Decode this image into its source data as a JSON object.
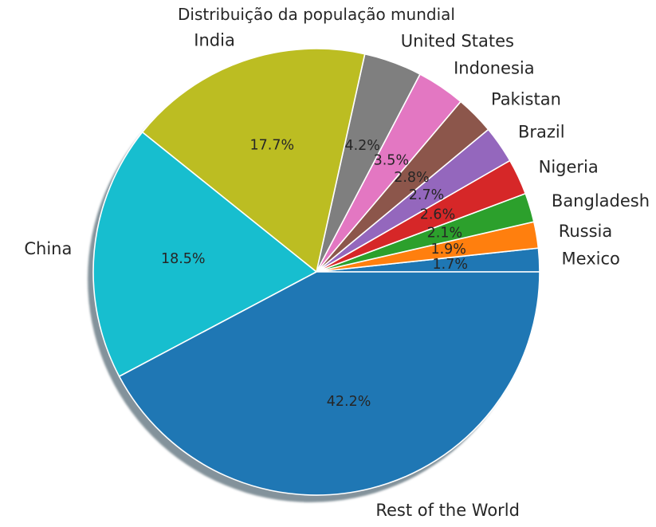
{
  "chart_data": {
    "type": "pie",
    "title": "Distribuição da população mundial",
    "start_angle_deg": 0,
    "direction": "counterclockwise",
    "shadow": true,
    "slices": [
      {
        "label": "Mexico",
        "value": 1.7,
        "pct_label": "1.7%",
        "color": "#1f77b4"
      },
      {
        "label": "Russia",
        "value": 1.9,
        "pct_label": "1.9%",
        "color": "#ff7f0e"
      },
      {
        "label": "Bangladesh",
        "value": 2.1,
        "pct_label": "2.1%",
        "color": "#2ca02c"
      },
      {
        "label": "Nigeria",
        "value": 2.6,
        "pct_label": "2.6%",
        "color": "#d62728"
      },
      {
        "label": "Brazil",
        "value": 2.7,
        "pct_label": "2.7%",
        "color": "#9467bd"
      },
      {
        "label": "Pakistan",
        "value": 2.8,
        "pct_label": "2.8%",
        "color": "#8c564b"
      },
      {
        "label": "Indonesia",
        "value": 3.5,
        "pct_label": "3.5%",
        "color": "#e377c2"
      },
      {
        "label": "United States",
        "value": 4.2,
        "pct_label": "4.2%",
        "color": "#7f7f7f"
      },
      {
        "label": "India",
        "value": 17.7,
        "pct_label": "17.7%",
        "color": "#bcbd22"
      },
      {
        "label": "China",
        "value": 18.5,
        "pct_label": "18.5%",
        "color": "#17becf"
      },
      {
        "label": "Rest of the World",
        "value": 42.2,
        "pct_label": "42.2%",
        "color": "#1f77b4"
      }
    ]
  }
}
